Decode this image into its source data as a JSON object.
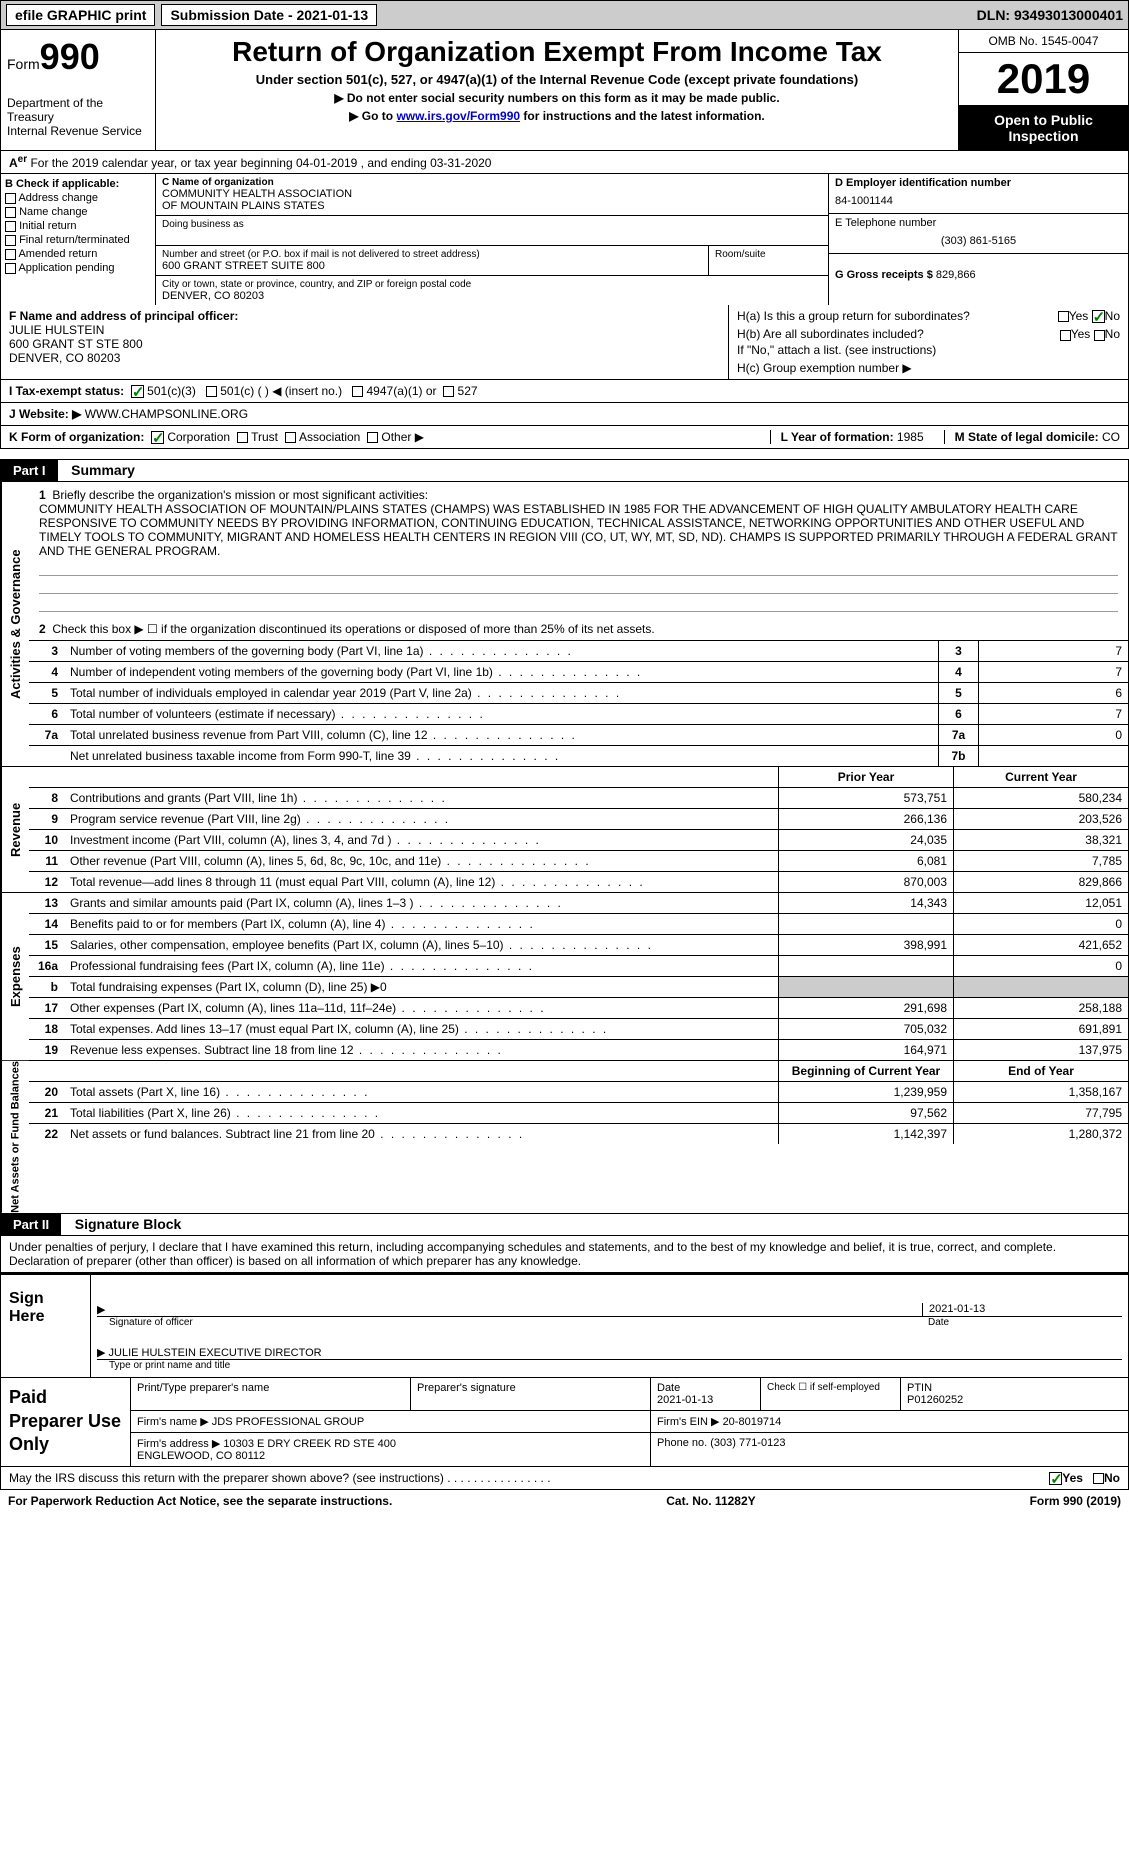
{
  "topbar": {
    "efile_label": "efile GRAPHIC print",
    "submission_label": "Submission Date - 2021-01-13",
    "dln_label": "DLN: 93493013000401"
  },
  "header": {
    "form_word": "Form",
    "form_num": "990",
    "title": "Return of Organization Exempt From Income Tax",
    "subtitle": "Under section 501(c), 527, or 4947(a)(1) of the Internal Revenue Code (except private foundations)",
    "note1": "▶ Do not enter social security numbers on this form as it may be made public.",
    "note2_pre": "▶ Go to ",
    "note2_link": "www.irs.gov/Form990",
    "note2_post": " for instructions and the latest information.",
    "dept": "Department of the Treasury\nInternal Revenue Service",
    "omb": "OMB No. 1545-0047",
    "year": "2019",
    "open": "Open to Public Inspection"
  },
  "row_a": "For the 2019 calendar year, or tax year beginning 04-01-2019   , and ending 03-31-2020",
  "sectionB": {
    "header": "B Check if applicable:",
    "items": [
      "Address change",
      "Name change",
      "Initial return",
      "Final return/terminated",
      "Amended return",
      "Application pending"
    ]
  },
  "sectionC": {
    "name_label": "C Name of organization",
    "name": "COMMUNITY HEALTH ASSOCIATION\nOF MOUNTAIN PLAINS STATES",
    "dba_label": "Doing business as",
    "street_label": "Number and street (or P.O. box if mail is not delivered to street address)",
    "street": "600 GRANT STREET SUITE 800",
    "room_label": "Room/suite",
    "city_label": "City or town, state or province, country, and ZIP or foreign postal code",
    "city": "DENVER, CO  80203"
  },
  "sectionD": {
    "label": "D Employer identification number",
    "value": "84-1001144"
  },
  "sectionE": {
    "label": "E Telephone number",
    "value": "(303) 861-5165"
  },
  "sectionG": {
    "label": "G Gross receipts $",
    "value": "829,866"
  },
  "sectionF": {
    "label": "F Name and address of principal officer:",
    "name": "JULIE HULSTEIN",
    "addr1": "600 GRANT ST STE 800",
    "addr2": "DENVER, CO  80203"
  },
  "sectionH": {
    "ha": "H(a)  Is this a group return for subordinates?",
    "hb": "H(b)  Are all subordinates included?",
    "hb_note": "If \"No,\" attach a list. (see instructions)",
    "hc": "H(c)  Group exemption number ▶",
    "yes": "Yes",
    "no": "No"
  },
  "taxExempt": {
    "label": "I    Tax-exempt status:",
    "opt1": "501(c)(3)",
    "opt2": "501(c) (  ) ◀ (insert no.)",
    "opt3": "4947(a)(1) or",
    "opt4": "527"
  },
  "website": {
    "label": "J   Website: ▶",
    "value": "WWW.CHAMPSONLINE.ORG"
  },
  "kRow": {
    "label": "K Form of organization:",
    "corp": "Corporation",
    "trust": "Trust",
    "assoc": "Association",
    "other": "Other ▶",
    "l_label": "L Year of formation:",
    "l_value": "1985",
    "m_label": "M State of legal domicile:",
    "m_value": "CO"
  },
  "part1": {
    "bar": "Part I",
    "title": "Summary",
    "side_activities": "Activities & Governance",
    "side_revenue": "Revenue",
    "side_expenses": "Expenses",
    "side_netassets": "Net Assets or Fund Balances",
    "line1_label": "Briefly describe the organization's mission or most significant activities:",
    "mission": "COMMUNITY HEALTH ASSOCIATION OF MOUNTAIN/PLAINS STATES (CHAMPS) WAS ESTABLISHED IN 1985 FOR THE ADVANCEMENT OF HIGH QUALITY AMBULATORY HEALTH CARE RESPONSIVE TO COMMUNITY NEEDS BY PROVIDING INFORMATION, CONTINUING EDUCATION, TECHNICAL ASSISTANCE, NETWORKING OPPORTUNITIES AND OTHER USEFUL AND TIMELY TOOLS TO COMMUNITY, MIGRANT AND HOMELESS HEALTH CENTERS IN REGION VIII (CO, UT, WY, MT, SD, ND). CHAMPS IS SUPPORTED PRIMARILY THROUGH A FEDERAL GRANT AND THE GENERAL PROGRAM.",
    "line2": "Check this box ▶ ☐  if the organization discontinued its operations or disposed of more than 25% of its net assets.",
    "gov_rows": [
      {
        "n": "3",
        "t": "Number of voting members of the governing body (Part VI, line 1a)",
        "b": "3",
        "v": "7"
      },
      {
        "n": "4",
        "t": "Number of independent voting members of the governing body (Part VI, line 1b)",
        "b": "4",
        "v": "7"
      },
      {
        "n": "5",
        "t": "Total number of individuals employed in calendar year 2019 (Part V, line 2a)",
        "b": "5",
        "v": "6"
      },
      {
        "n": "6",
        "t": "Total number of volunteers (estimate if necessary)",
        "b": "6",
        "v": "7"
      },
      {
        "n": "7a",
        "t": "Total unrelated business revenue from Part VIII, column (C), line 12",
        "b": "7a",
        "v": "0"
      },
      {
        "n": "",
        "t": "Net unrelated business taxable income from Form 990-T, line 39",
        "b": "7b",
        "v": ""
      }
    ],
    "col_prior": "Prior Year",
    "col_curr": "Current Year",
    "rev_rows": [
      {
        "n": "8",
        "t": "Contributions and grants (Part VIII, line 1h)",
        "p": "573,751",
        "c": "580,234"
      },
      {
        "n": "9",
        "t": "Program service revenue (Part VIII, line 2g)",
        "p": "266,136",
        "c": "203,526"
      },
      {
        "n": "10",
        "t": "Investment income (Part VIII, column (A), lines 3, 4, and 7d )",
        "p": "24,035",
        "c": "38,321"
      },
      {
        "n": "11",
        "t": "Other revenue (Part VIII, column (A), lines 5, 6d, 8c, 9c, 10c, and 11e)",
        "p": "6,081",
        "c": "7,785"
      },
      {
        "n": "12",
        "t": "Total revenue—add lines 8 through 11 (must equal Part VIII, column (A), line 12)",
        "p": "870,003",
        "c": "829,866"
      }
    ],
    "exp_rows": [
      {
        "n": "13",
        "t": "Grants and similar amounts paid (Part IX, column (A), lines 1–3 )",
        "p": "14,343",
        "c": "12,051"
      },
      {
        "n": "14",
        "t": "Benefits paid to or for members (Part IX, column (A), line 4)",
        "p": "",
        "c": "0"
      },
      {
        "n": "15",
        "t": "Salaries, other compensation, employee benefits (Part IX, column (A), lines 5–10)",
        "p": "398,991",
        "c": "421,652"
      },
      {
        "n": "16a",
        "t": "Professional fundraising fees (Part IX, column (A), line 11e)",
        "p": "",
        "c": "0"
      },
      {
        "n": "b",
        "t": "Total fundraising expenses (Part IX, column (D), line 25) ▶0",
        "p": "__SHADED__",
        "c": "__SHADED__"
      },
      {
        "n": "17",
        "t": "Other expenses (Part IX, column (A), lines 11a–11d, 11f–24e)",
        "p": "291,698",
        "c": "258,188"
      },
      {
        "n": "18",
        "t": "Total expenses. Add lines 13–17 (must equal Part IX, column (A), line 25)",
        "p": "705,032",
        "c": "691,891"
      },
      {
        "n": "19",
        "t": "Revenue less expenses. Subtract line 18 from line 12",
        "p": "164,971",
        "c": "137,975"
      }
    ],
    "col_begin": "Beginning of Current Year",
    "col_end": "End of Year",
    "net_rows": [
      {
        "n": "20",
        "t": "Total assets (Part X, line 16)",
        "p": "1,239,959",
        "c": "1,358,167"
      },
      {
        "n": "21",
        "t": "Total liabilities (Part X, line 26)",
        "p": "97,562",
        "c": "77,795"
      },
      {
        "n": "22",
        "t": "Net assets or fund balances. Subtract line 21 from line 20",
        "p": "1,142,397",
        "c": "1,280,372"
      }
    ]
  },
  "part2": {
    "bar": "Part II",
    "title": "Signature Block",
    "perjury": "Under penalties of perjury, I declare that I have examined this return, including accompanying schedules and statements, and to the best of my knowledge and belief, it is true, correct, and complete. Declaration of preparer (other than officer) is based on all information of which preparer has any knowledge.",
    "sign_here": "Sign Here",
    "sig_officer": "Signature of officer",
    "sig_date": "2021-01-13",
    "date_label": "Date",
    "officer_name": "JULIE HULSTEIN  EXECUTIVE DIRECTOR",
    "officer_sub": "Type or print name and title",
    "paid_label": "Paid Preparer Use Only",
    "prep_name_label": "Print/Type preparer's name",
    "prep_sig_label": "Preparer's signature",
    "prep_date_label": "Date",
    "prep_date": "2021-01-13",
    "check_label": "Check ☐ if self-employed",
    "ptin_label": "PTIN",
    "ptin": "P01260252",
    "firm_name_label": "Firm's name    ▶",
    "firm_name": "JDS PROFESSIONAL GROUP",
    "firm_ein_label": "Firm's EIN ▶",
    "firm_ein": "20-8019714",
    "firm_addr_label": "Firm's address ▶",
    "firm_addr": "10303 E DRY CREEK RD STE 400\nENGLEWOOD, CO  80112",
    "phone_label": "Phone no.",
    "phone": "(303) 771-0123",
    "discuss": "May the IRS discuss this return with the preparer shown above? (see instructions)",
    "yes": "Yes",
    "no": "No"
  },
  "footer": {
    "pra": "For Paperwork Reduction Act Notice, see the separate instructions.",
    "cat": "Cat. No. 11282Y",
    "form": "Form 990 (2019)"
  }
}
